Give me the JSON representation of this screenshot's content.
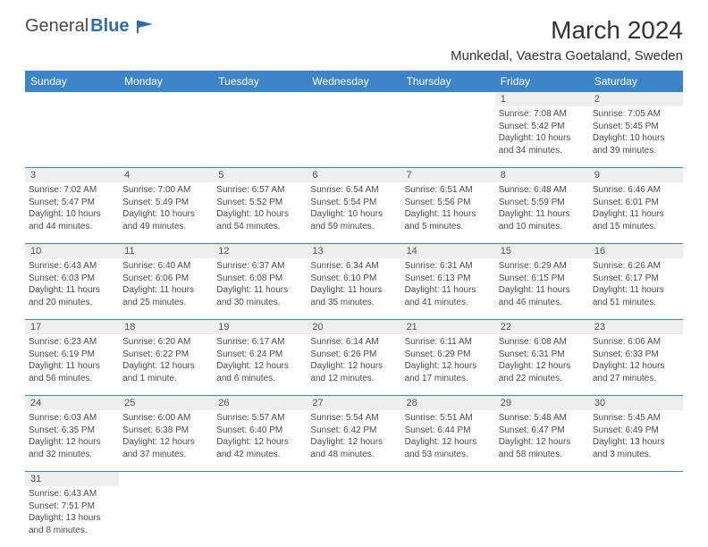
{
  "logo": {
    "text1": "General",
    "text2": "Blue"
  },
  "title": "March 2024",
  "location": "Munkedal, Vaestra Goetaland, Sweden",
  "colors": {
    "header_bg": "#3d85c6",
    "header_text": "#ffffff",
    "daynum_bg": "#eeeeee",
    "border": "#3d85c6",
    "text": "#4a4a4a"
  },
  "day_names": [
    "Sunday",
    "Monday",
    "Tuesday",
    "Wednesday",
    "Thursday",
    "Friday",
    "Saturday"
  ],
  "weeks": [
    [
      null,
      null,
      null,
      null,
      null,
      {
        "n": "1",
        "sr": "7:08 AM",
        "ss": "5:42 PM",
        "dl": "10 hours and 34 minutes."
      },
      {
        "n": "2",
        "sr": "7:05 AM",
        "ss": "5:45 PM",
        "dl": "10 hours and 39 minutes."
      }
    ],
    [
      {
        "n": "3",
        "sr": "7:02 AM",
        "ss": "5:47 PM",
        "dl": "10 hours and 44 minutes."
      },
      {
        "n": "4",
        "sr": "7:00 AM",
        "ss": "5:49 PM",
        "dl": "10 hours and 49 minutes."
      },
      {
        "n": "5",
        "sr": "6:57 AM",
        "ss": "5:52 PM",
        "dl": "10 hours and 54 minutes."
      },
      {
        "n": "6",
        "sr": "6:54 AM",
        "ss": "5:54 PM",
        "dl": "10 hours and 59 minutes."
      },
      {
        "n": "7",
        "sr": "6:51 AM",
        "ss": "5:56 PM",
        "dl": "11 hours and 5 minutes."
      },
      {
        "n": "8",
        "sr": "6:48 AM",
        "ss": "5:59 PM",
        "dl": "11 hours and 10 minutes."
      },
      {
        "n": "9",
        "sr": "6:46 AM",
        "ss": "6:01 PM",
        "dl": "11 hours and 15 minutes."
      }
    ],
    [
      {
        "n": "10",
        "sr": "6:43 AM",
        "ss": "6:03 PM",
        "dl": "11 hours and 20 minutes."
      },
      {
        "n": "11",
        "sr": "6:40 AM",
        "ss": "6:06 PM",
        "dl": "11 hours and 25 minutes."
      },
      {
        "n": "12",
        "sr": "6:37 AM",
        "ss": "6:08 PM",
        "dl": "11 hours and 30 minutes."
      },
      {
        "n": "13",
        "sr": "6:34 AM",
        "ss": "6:10 PM",
        "dl": "11 hours and 35 minutes."
      },
      {
        "n": "14",
        "sr": "6:31 AM",
        "ss": "6:13 PM",
        "dl": "11 hours and 41 minutes."
      },
      {
        "n": "15",
        "sr": "6:29 AM",
        "ss": "6:15 PM",
        "dl": "11 hours and 46 minutes."
      },
      {
        "n": "16",
        "sr": "6:26 AM",
        "ss": "6:17 PM",
        "dl": "11 hours and 51 minutes."
      }
    ],
    [
      {
        "n": "17",
        "sr": "6:23 AM",
        "ss": "6:19 PM",
        "dl": "11 hours and 56 minutes."
      },
      {
        "n": "18",
        "sr": "6:20 AM",
        "ss": "6:22 PM",
        "dl": "12 hours and 1 minute."
      },
      {
        "n": "19",
        "sr": "6:17 AM",
        "ss": "6:24 PM",
        "dl": "12 hours and 6 minutes."
      },
      {
        "n": "20",
        "sr": "6:14 AM",
        "ss": "6:26 PM",
        "dl": "12 hours and 12 minutes."
      },
      {
        "n": "21",
        "sr": "6:11 AM",
        "ss": "6:29 PM",
        "dl": "12 hours and 17 minutes."
      },
      {
        "n": "22",
        "sr": "6:08 AM",
        "ss": "6:31 PM",
        "dl": "12 hours and 22 minutes."
      },
      {
        "n": "23",
        "sr": "6:06 AM",
        "ss": "6:33 PM",
        "dl": "12 hours and 27 minutes."
      }
    ],
    [
      {
        "n": "24",
        "sr": "6:03 AM",
        "ss": "6:35 PM",
        "dl": "12 hours and 32 minutes."
      },
      {
        "n": "25",
        "sr": "6:00 AM",
        "ss": "6:38 PM",
        "dl": "12 hours and 37 minutes."
      },
      {
        "n": "26",
        "sr": "5:57 AM",
        "ss": "6:40 PM",
        "dl": "12 hours and 42 minutes."
      },
      {
        "n": "27",
        "sr": "5:54 AM",
        "ss": "6:42 PM",
        "dl": "12 hours and 48 minutes."
      },
      {
        "n": "28",
        "sr": "5:51 AM",
        "ss": "6:44 PM",
        "dl": "12 hours and 53 minutes."
      },
      {
        "n": "29",
        "sr": "5:48 AM",
        "ss": "6:47 PM",
        "dl": "12 hours and 58 minutes."
      },
      {
        "n": "30",
        "sr": "5:45 AM",
        "ss": "6:49 PM",
        "dl": "13 hours and 3 minutes."
      }
    ],
    [
      {
        "n": "31",
        "sr": "6:43 AM",
        "ss": "7:51 PM",
        "dl": "13 hours and 8 minutes."
      },
      null,
      null,
      null,
      null,
      null,
      null
    ]
  ],
  "labels": {
    "sunrise": "Sunrise:",
    "sunset": "Sunset:",
    "daylight": "Daylight:"
  }
}
